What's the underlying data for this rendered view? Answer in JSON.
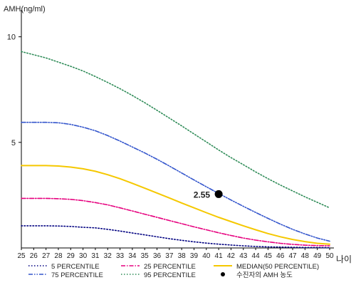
{
  "chart_data": {
    "type": "line",
    "ylabel": "AMH(ng/ml)",
    "xlabel": "나이",
    "ylim": [
      0,
      11
    ],
    "xlim": [
      25,
      50
    ],
    "yticks": [
      5,
      10
    ],
    "xticks": [
      25,
      26,
      27,
      28,
      29,
      30,
      31,
      32,
      33,
      34,
      35,
      36,
      37,
      38,
      39,
      40,
      41,
      42,
      43,
      44,
      45,
      46,
      47,
      48,
      49,
      50
    ],
    "x": [
      25,
      26,
      27,
      28,
      29,
      30,
      31,
      32,
      33,
      34,
      35,
      36,
      37,
      38,
      39,
      40,
      41,
      42,
      43,
      44,
      45,
      46,
      47,
      48,
      49,
      50
    ],
    "series": [
      {
        "name": "5 PERCENTILE",
        "color": "#000080",
        "dash": "dot",
        "values": [
          1.05,
          1.05,
          1.05,
          1.04,
          1.02,
          0.98,
          0.95,
          0.88,
          0.8,
          0.71,
          0.62,
          0.53,
          0.44,
          0.36,
          0.29,
          0.23,
          0.18,
          0.14,
          0.1,
          0.07,
          0.05,
          0.04,
          0.03,
          0.02,
          0.02,
          0.01
        ]
      },
      {
        "name": "25 PERCENTILE",
        "color": "#e6007e",
        "dash": "dashdot",
        "values": [
          2.35,
          2.35,
          2.35,
          2.33,
          2.3,
          2.24,
          2.15,
          2.04,
          1.9,
          1.75,
          1.6,
          1.45,
          1.3,
          1.15,
          1.0,
          0.86,
          0.72,
          0.59,
          0.47,
          0.37,
          0.29,
          0.22,
          0.17,
          0.13,
          0.11,
          0.1
        ]
      },
      {
        "name": "MEDIAN(50 PERCENTILE)",
        "color": "#f5c800",
        "dash": "solid",
        "values": [
          3.9,
          3.9,
          3.9,
          3.88,
          3.83,
          3.75,
          3.63,
          3.47,
          3.28,
          3.06,
          2.83,
          2.6,
          2.37,
          2.13,
          1.9,
          1.67,
          1.45,
          1.25,
          1.05,
          0.86,
          0.68,
          0.53,
          0.4,
          0.3,
          0.22,
          0.18
        ]
      },
      {
        "name": "75 PERCENTILE",
        "color": "#3355cc",
        "dash": "dashdotdot",
        "values": [
          5.95,
          5.95,
          5.95,
          5.93,
          5.85,
          5.72,
          5.55,
          5.32,
          5.06,
          4.78,
          4.5,
          4.2,
          3.88,
          3.55,
          3.22,
          2.9,
          2.58,
          2.27,
          1.97,
          1.68,
          1.4,
          1.13,
          0.88,
          0.66,
          0.47,
          0.32
        ]
      },
      {
        "name": "95 PERCENTILE",
        "color": "#2e8b57",
        "dash": "dot",
        "values": [
          9.3,
          9.15,
          9.0,
          8.8,
          8.6,
          8.38,
          8.12,
          7.84,
          7.54,
          7.22,
          6.88,
          6.52,
          6.15,
          5.78,
          5.4,
          5.02,
          4.64,
          4.28,
          3.94,
          3.6,
          3.28,
          2.98,
          2.7,
          2.42,
          2.16,
          1.9
        ]
      }
    ],
    "marker": {
      "name": "수진자의 AMH 농도",
      "x": 41,
      "y": 2.55,
      "label": "2.55",
      "color": "#000000"
    },
    "legend_position": "bottom",
    "grid": false
  }
}
